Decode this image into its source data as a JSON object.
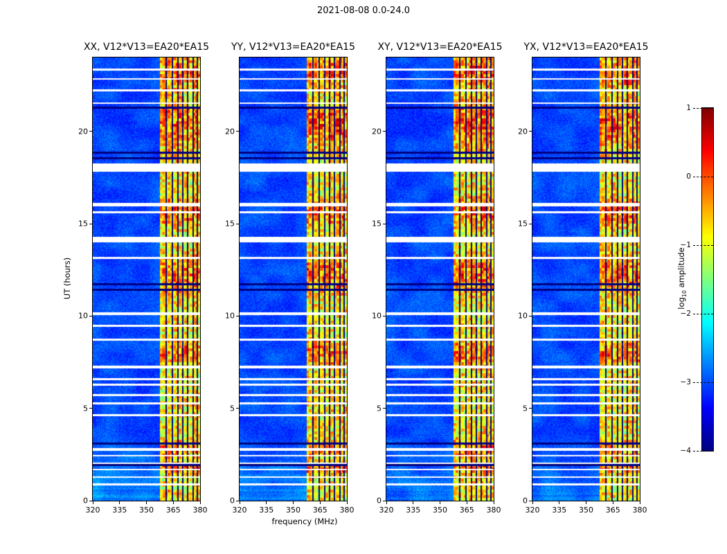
{
  "chart_data": {
    "type": "heatmap",
    "title": "2021-08-08 0.0-24.0",
    "xlabel": "frequency (MHz)",
    "ylabel": "UT (hours)",
    "x_range_mhz": [
      320,
      380
    ],
    "x_ticks": [
      "320",
      "335",
      "350",
      "365",
      "380"
    ],
    "y_range_hours": [
      0,
      24
    ],
    "y_ticks": [
      "0",
      "5",
      "10",
      "15",
      "20"
    ],
    "panels": [
      {
        "title": "XX, V12*V13=EA20*EA15"
      },
      {
        "title": "YY, V12*V13=EA20*EA15"
      },
      {
        "title": "XY, V12*V13=EA20*EA15"
      },
      {
        "title": "YX, V12*V13=EA20*EA15"
      }
    ],
    "colorbar": {
      "label_prefix": "log",
      "label_sub": "10",
      "label_suffix": " amplitude",
      "colormap": "jet",
      "min": -4,
      "max": 1,
      "ticks": [
        {
          "value": 1,
          "label": "1"
        },
        {
          "value": 0,
          "label": "0"
        },
        {
          "value": -1,
          "label": "−1"
        },
        {
          "value": -2,
          "label": "−2"
        },
        {
          "value": -3,
          "label": "−3"
        },
        {
          "value": -4,
          "label": "−4"
        }
      ]
    },
    "features": {
      "background_level_log10": -3.0,
      "rfi_band_mhz": [
        357.5,
        380
      ],
      "flagged_channel_lines_mhz": [
        360.8,
        364.2,
        367.3,
        370.2,
        372.8,
        375.8,
        378.3
      ],
      "data_gap_hours": [
        {
          "hour": 23.35,
          "width": 0.1
        },
        {
          "hour": 22.85,
          "width": 0.1
        },
        {
          "hour": 22.25,
          "width": 0.1
        },
        {
          "hour": 21.55,
          "width": 0.1
        },
        {
          "hour": 18.05,
          "width": 0.45
        },
        {
          "hour": 16.05,
          "width": 0.18
        },
        {
          "hour": 15.65,
          "width": 0.1
        },
        {
          "hour": 14.15,
          "width": 0.32
        },
        {
          "hour": 13.15,
          "width": 0.12
        },
        {
          "hour": 10.15,
          "width": 0.14
        },
        {
          "hour": 9.5,
          "width": 0.1
        },
        {
          "hour": 8.75,
          "width": 0.1
        },
        {
          "hour": 7.25,
          "width": 0.14
        },
        {
          "hour": 6.6,
          "width": 0.1
        },
        {
          "hour": 6.3,
          "width": 0.1
        },
        {
          "hour": 5.75,
          "width": 0.1
        },
        {
          "hour": 5.3,
          "width": 0.1
        },
        {
          "hour": 4.65,
          "width": 0.1
        },
        {
          "hour": 2.8,
          "width": 0.16
        },
        {
          "hour": 2.45,
          "width": 0.1
        },
        {
          "hour": 2.05,
          "width": 0.1
        },
        {
          "hour": 1.7,
          "width": 0.1
        },
        {
          "hour": 1.3,
          "width": 0.1
        },
        {
          "hour": 0.9,
          "width": 0.1
        }
      ],
      "dark_row_hours": [
        21.3,
        18.85,
        18.55,
        11.75,
        11.45,
        3.1,
        1.95
      ],
      "active_period_hours": [
        [
          1.5,
          2.1
        ],
        [
          2.4,
          3.3
        ],
        [
          7.4,
          8.6
        ],
        [
          11.3,
          13.3
        ],
        [
          14.9,
          16.4
        ],
        [
          19.0,
          21.8
        ],
        [
          22.3,
          24.2
        ]
      ],
      "enhanced_low_hours": 3.2
    }
  }
}
